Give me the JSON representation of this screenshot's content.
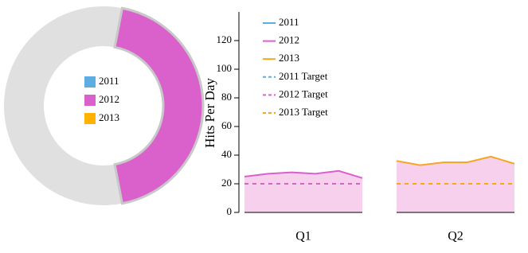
{
  "chart_data": [
    {
      "type": "pie",
      "donut": true,
      "categories": [
        "2011",
        "2012",
        "2013"
      ],
      "values": [
        3,
        44,
        53
      ],
      "colors": [
        "#5dade2",
        "#da60cc",
        "#ffb300"
      ],
      "slice_colors": [
        "#e0e0e0",
        "#da60cc",
        "#e0e0e0"
      ]
    },
    {
      "type": "line",
      "ylabel": "Hits Per Day",
      "panels": [
        "Q1",
        "Q2"
      ],
      "categories": [
        null,
        null,
        null,
        null,
        null,
        null,
        null,
        null,
        null,
        null,
        null,
        null
      ],
      "ylim": [
        0,
        140
      ],
      "yticks": [
        0,
        20,
        40,
        60,
        80,
        100,
        120
      ],
      "area_color": "#f6d0ec",
      "series": [
        {
          "name": "2011",
          "color": "#5dade2",
          "values": [
            null,
            null,
            null,
            null,
            null,
            null,
            null,
            null,
            null,
            null,
            null,
            null
          ]
        },
        {
          "name": "2012",
          "color": "#da60cc",
          "values": [
            25,
            27,
            28,
            27,
            29,
            24,
            null,
            null,
            null,
            null,
            null,
            null
          ]
        },
        {
          "name": "2013",
          "color": "#f5a623",
          "values": [
            null,
            null,
            null,
            null,
            null,
            null,
            36,
            33,
            35,
            35,
            39,
            34
          ]
        },
        {
          "name": "2011 Target",
          "color": "#5dade2",
          "dashed": true,
          "values": [
            null,
            null,
            null,
            null,
            null,
            null,
            null,
            null,
            null,
            null,
            null,
            null
          ]
        },
        {
          "name": "2012 Target",
          "color": "#da60cc",
          "dashed": true,
          "values": [
            20,
            20,
            20,
            20,
            20,
            20,
            null,
            null,
            null,
            null,
            null,
            null
          ]
        },
        {
          "name": "2013 Target",
          "color": "#f5a623",
          "dashed": true,
          "values": [
            null,
            null,
            null,
            null,
            null,
            null,
            20,
            20,
            20,
            20,
            20,
            20
          ]
        }
      ]
    }
  ]
}
